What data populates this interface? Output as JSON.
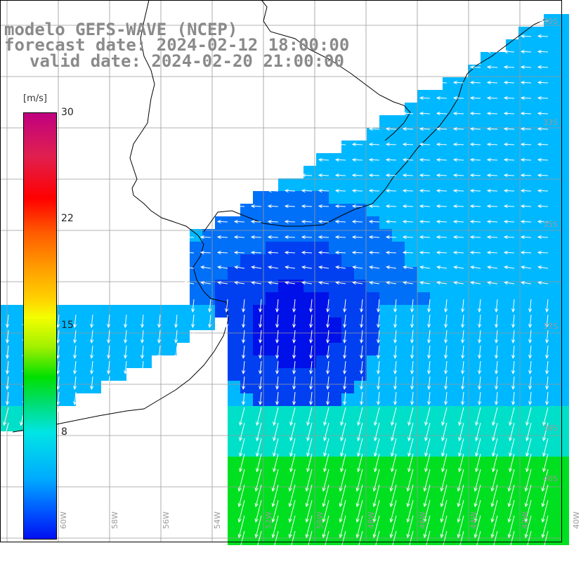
{
  "header": {
    "line1": "modelo GEFS-WAVE (NCEP)",
    "line2": "forecast date: 2024-02-12 18:00:00",
    "line3": "valid date: 2024-02-20 21:00:00"
  },
  "colorbar": {
    "unit": "[m/s]",
    "ticks": [
      "30",
      "22",
      "15",
      "8"
    ],
    "colors": [
      "#c0007f",
      "#ff0000",
      "#ff9a00",
      "#f4ff00",
      "#00e000",
      "#00e5e5",
      "#0010f0"
    ]
  },
  "axes": {
    "lat_labels": [
      "30S",
      "33S",
      "35S",
      "37S",
      "39S",
      "40S"
    ],
    "lon_labels": [
      "60W",
      "58W",
      "56W",
      "54W",
      "52W",
      "50W",
      "48W",
      "46W",
      "44W",
      "42W",
      "40W"
    ]
  },
  "colors": {
    "land": "#ffffff",
    "coast": "#000000",
    "grid": "#9a9a9a",
    "arrow": "#ffffff"
  }
}
